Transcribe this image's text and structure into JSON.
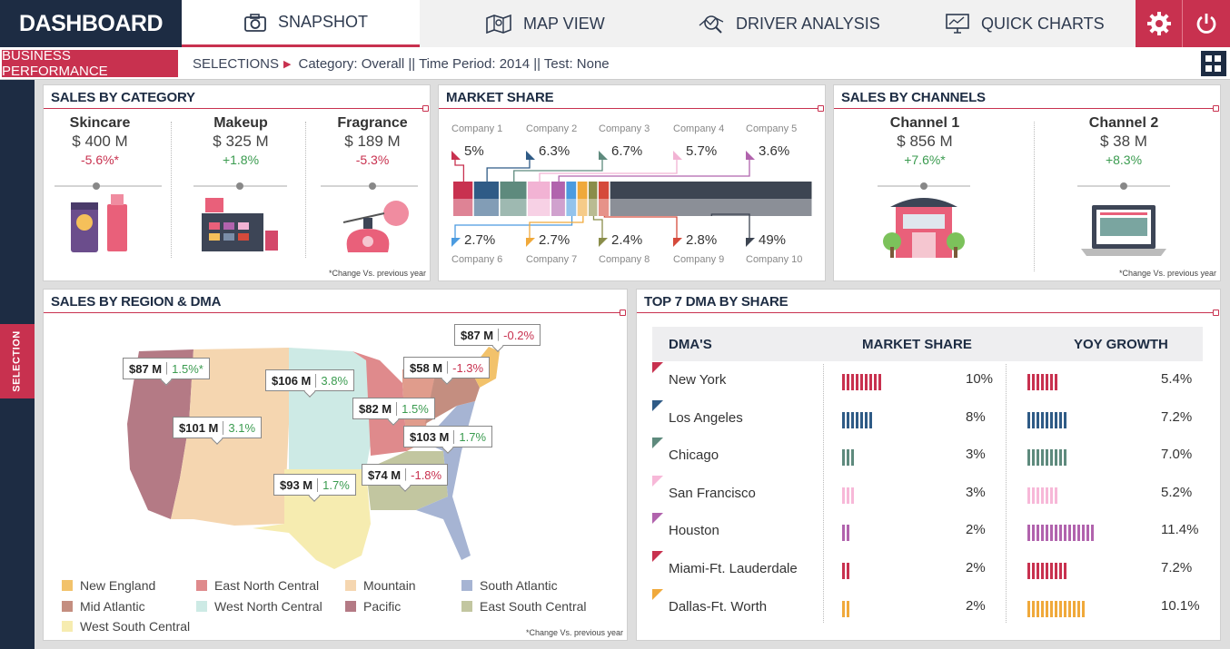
{
  "header": {
    "brand": "DASHBOARD",
    "tabs": [
      {
        "label": "SNAPSHOT",
        "icon": "camera-icon"
      },
      {
        "label": "MAP VIEW",
        "icon": "map-icon"
      },
      {
        "label": "DRIVER ANALYSIS",
        "icon": "analysis-icon"
      },
      {
        "label": "QUICK CHARTS",
        "icon": "monitor-chart-icon"
      }
    ]
  },
  "subheader": {
    "section": "BUSINESS PERFORMANCE",
    "selections_label": "SELECTIONS",
    "selections_value": "Category: Overall || Time Period: 2014 || Test: None"
  },
  "sidebar": {
    "selection_tab": "SELECTION"
  },
  "sales_by_category": {
    "title": "SALES BY CATEGORY",
    "note": "*Change Vs. previous year",
    "items": [
      {
        "name": "Skincare",
        "value": "$ 400 M",
        "change": "-5.6%*"
      },
      {
        "name": "Makeup",
        "value": "$ 325 M",
        "change": "+1.8%"
      },
      {
        "name": "Fragrance",
        "value": "$ 189 M",
        "change": "-5.3%"
      }
    ]
  },
  "market_share": {
    "title": "MARKET SHARE",
    "companies": [
      {
        "name": "Company 1",
        "share": "5%",
        "color": "#c8314f"
      },
      {
        "name": "Company 2",
        "share": "6.3%",
        "color": "#2f5b86"
      },
      {
        "name": "Company 3",
        "share": "6.7%",
        "color": "#5e8a7d"
      },
      {
        "name": "Company 4",
        "share": "5.7%",
        "color": "#f2b3d4"
      },
      {
        "name": "Company 5",
        "share": "3.6%",
        "color": "#b163ad"
      },
      {
        "name": "Company 6",
        "share": "2.7%",
        "color": "#4b9be0"
      },
      {
        "name": "Company 7",
        "share": "2.7%",
        "color": "#f0a93b"
      },
      {
        "name": "Company 8",
        "share": "2.4%",
        "color": "#8a8d4a"
      },
      {
        "name": "Company 9",
        "share": "2.8%",
        "color": "#d54a3b"
      },
      {
        "name": "Company 10",
        "share": "49%",
        "color": "#3d4552"
      }
    ]
  },
  "sales_by_channels": {
    "title": "SALES BY CHANNELS",
    "note": "*Change Vs. previous year",
    "items": [
      {
        "name": "Channel 1",
        "value": "$ 856 M",
        "change": "+7.6%*"
      },
      {
        "name": "Channel 2",
        "value": "$ 38 M",
        "change": "+8.3%"
      }
    ]
  },
  "sales_by_region": {
    "title": "SALES BY REGION & DMA",
    "note": "*Change Vs. previous year",
    "callouts": [
      {
        "value": "$87 M",
        "change": "-0.2%"
      },
      {
        "value": "$87 M",
        "change": "1.5%*"
      },
      {
        "value": "$106 M",
        "change": "3.8%"
      },
      {
        "value": "$58 M",
        "change": "-1.3%"
      },
      {
        "value": "$82 M",
        "change": "1.5%"
      },
      {
        "value": "$101 M",
        "change": "3.1%"
      },
      {
        "value": "$103 M",
        "change": "1.7%"
      },
      {
        "value": "$74 M",
        "change": "-1.8%"
      },
      {
        "value": "$93 M",
        "change": "1.7%"
      }
    ],
    "legend": [
      {
        "label": "New England",
        "color": "#f2c26b"
      },
      {
        "label": "East North Central",
        "color": "#df8a8c"
      },
      {
        "label": "Mountain",
        "color": "#f5d6b0"
      },
      {
        "label": "South Atlantic",
        "color": "#a6b4d3"
      },
      {
        "label": "Mid Atlantic",
        "color": "#c48e80"
      },
      {
        "label": "West North Central",
        "color": "#cdeae5"
      },
      {
        "label": "Pacific",
        "color": "#b47a85"
      },
      {
        "label": "East South Central",
        "color": "#c2c6a0"
      },
      {
        "label": "West South Central",
        "color": "#f6ecb0"
      }
    ]
  },
  "top_dma": {
    "title": "TOP 7 DMA BY SHARE",
    "columns": [
      "DMA'S",
      "MARKET SHARE",
      "YOY GROWTH"
    ],
    "rows": [
      {
        "name": "New York",
        "share": "10%",
        "growth": "5.4%",
        "color": "#c8314f",
        "share_n": 10,
        "growth_n": 5.4
      },
      {
        "name": "Los Angeles",
        "share": "8%",
        "growth": "7.2%",
        "color": "#2f5b86",
        "share_n": 8,
        "growth_n": 7.2
      },
      {
        "name": "Chicago",
        "share": "3%",
        "growth": "7.0%",
        "color": "#5e8a7d",
        "share_n": 3,
        "growth_n": 7.0
      },
      {
        "name": "San Francisco",
        "share": "3%",
        "growth": "5.2%",
        "color": "#f7b8d8",
        "share_n": 3,
        "growth_n": 5.2
      },
      {
        "name": "Houston",
        "share": "2%",
        "growth": "11.4%",
        "color": "#b163ad",
        "share_n": 2,
        "growth_n": 11.4
      },
      {
        "name": "Miami-Ft. Lauderdale",
        "share": "2%",
        "growth": "7.2%",
        "color": "#c8314f",
        "share_n": 2,
        "growth_n": 7.2
      },
      {
        "name": "Dallas-Ft. Worth",
        "share": "2%",
        "growth": "10.1%",
        "color": "#f0a93b",
        "share_n": 2,
        "growth_n": 10.1
      }
    ]
  }
}
